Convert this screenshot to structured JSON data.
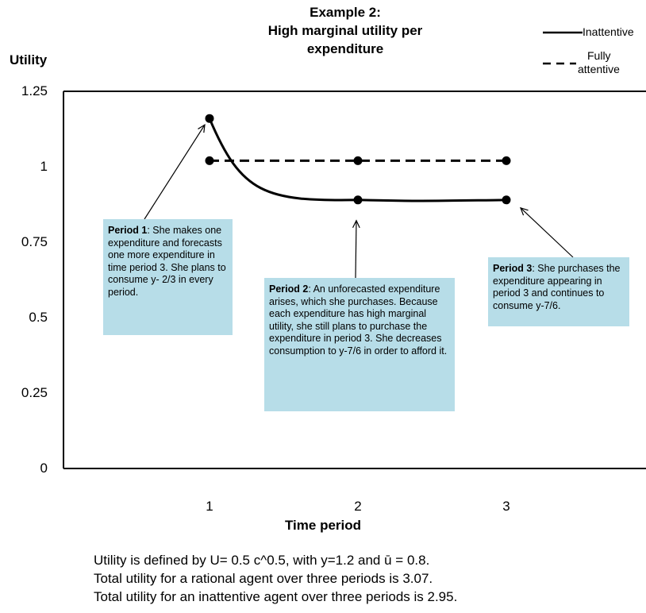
{
  "chart_data": {
    "type": "line",
    "title_line1": "Example 2:",
    "title_line2": "High marginal utility per expenditure",
    "ylabel": "Utility",
    "xlabel": "Time period",
    "y_ticks": [
      "1.25",
      "1",
      "0.75",
      "0.5",
      "0.25",
      "0"
    ],
    "y_tick_values": [
      1.25,
      1,
      0.75,
      0.5,
      0.25,
      0
    ],
    "x_ticks": [
      "1",
      "2",
      "3"
    ],
    "x_tick_values": [
      1,
      2,
      3
    ],
    "ylim": [
      0,
      1.25
    ],
    "xlim": [
      0,
      4
    ],
    "grid": false,
    "legend_position": "top-right",
    "series": [
      {
        "name": "Inattentive",
        "style": "solid",
        "color": "#000000",
        "x": [
          1,
          2,
          3
        ],
        "y": [
          1.16,
          0.89,
          0.89
        ]
      },
      {
        "name": "Fully attentive",
        "style": "dashed",
        "color": "#000000",
        "x": [
          1,
          2,
          3
        ],
        "y": [
          1.02,
          1.02,
          1.02
        ]
      }
    ],
    "annotations": [
      {
        "id": "p1",
        "bold": "Period 1",
        "text": ": She makes one expenditure and forecasts one more expenditure in time period 3.   She plans to consume y- 2/3 in every period.",
        "points_to": {
          "x": 1,
          "y": 1.16
        }
      },
      {
        "id": "p2",
        "bold": "Period 2",
        "text": ": An unforecasted expenditure arises, which she purchases.  Because each expenditure has high marginal utility, she still plans to purchase the expenditure in period 3.  She decreases consumption to y-7/6  in order to afford it.",
        "points_to": {
          "x": 2,
          "y": 0.89
        }
      },
      {
        "id": "p3",
        "bold": "Period 3",
        "text": ": She purchases the expenditure appearing in period 3 and continues to consume y-7/6.",
        "points_to": {
          "x": 3,
          "y": 0.89
        }
      }
    ],
    "box_color": "#b7dde8"
  },
  "legend": {
    "inattentive_label": "Inattentive",
    "attentive_label_line1": "Fully",
    "attentive_label_line2": "attentive"
  },
  "notes": [
    "Utility is defined by U= 0.5 c^0.5, with y=1.2 and ū = 0.8.",
    "Total utility for a rational agent over three periods is 3.07.",
    "Total utility for an inattentive agent over three periods is 2.95."
  ]
}
